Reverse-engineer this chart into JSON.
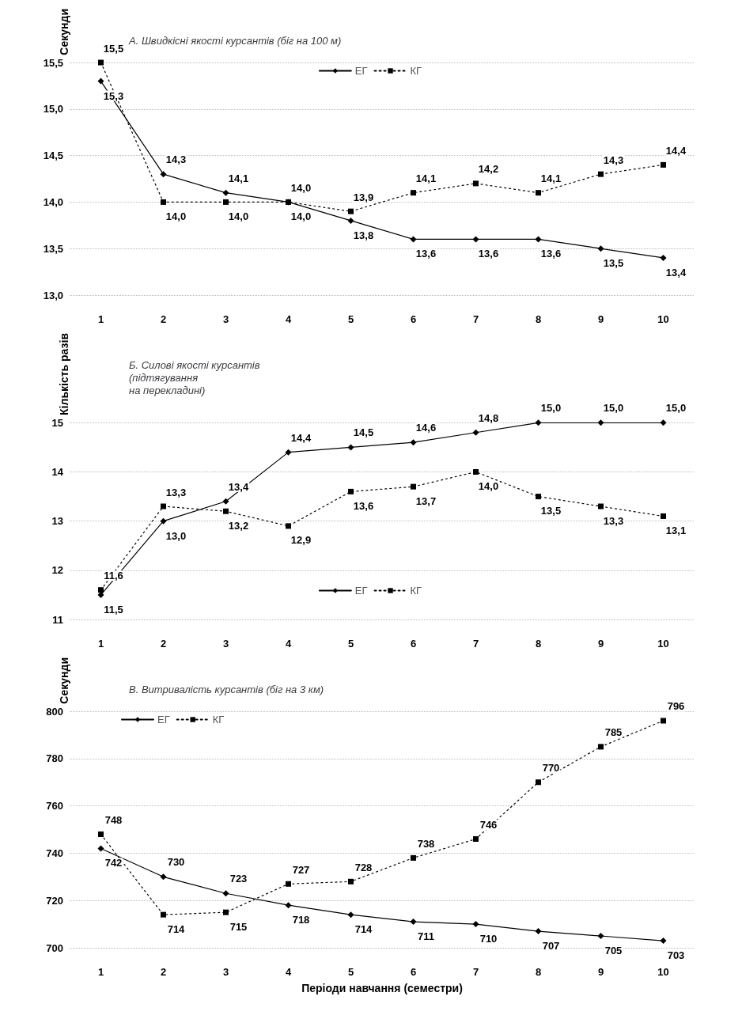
{
  "chart_data": [
    {
      "type": "line",
      "title": "А. Швидкісні якості курсантів (біг на 100 м)",
      "ylabel": "Секунди",
      "categories": [
        "1",
        "2",
        "3",
        "4",
        "5",
        "6",
        "7",
        "8",
        "9",
        "10"
      ],
      "series": [
        {
          "name": "ЕГ",
          "color": "#000000",
          "marker": "diamond",
          "line_style": "solid",
          "values": [
            15.3,
            14.3,
            14.1,
            14.0,
            13.8,
            13.6,
            13.6,
            13.6,
            13.5,
            13.4
          ],
          "value_labels": [
            "15,3",
            "14,3",
            "14,1",
            "14,0",
            "13,8",
            "13,6",
            "13,6",
            "13,6",
            "13,5",
            "13,4"
          ]
        },
        {
          "name": "КГ",
          "color": "#000000",
          "marker": "square",
          "line_style": "dotted",
          "values": [
            15.5,
            14.0,
            14.0,
            14.0,
            13.9,
            14.1,
            14.2,
            14.1,
            14.3,
            14.4
          ],
          "value_labels": [
            "15,5",
            "14,0",
            "14,0",
            "14,0",
            "13,9",
            "14,1",
            "14,2",
            "14,1",
            "14,3",
            "14,4"
          ]
        }
      ],
      "ylim": [
        13.0,
        15.5
      ],
      "yticks": [
        {
          "value": 13.0,
          "label": "13,0"
        },
        {
          "value": 13.5,
          "label": "13,5"
        },
        {
          "value": 14.0,
          "label": "14,0"
        },
        {
          "value": 14.5,
          "label": "14,5"
        },
        {
          "value": 15.0,
          "label": "15,0"
        },
        {
          "value": 15.5,
          "label": "15,5"
        }
      ],
      "grid": "y",
      "legend": "top"
    },
    {
      "type": "line",
      "title": "Б. Силові якості курсантів\n(підтягування\nна перекладині)",
      "ylabel": "Кількість разів",
      "categories": [
        "1",
        "2",
        "3",
        "4",
        "5",
        "6",
        "7",
        "8",
        "9",
        "10"
      ],
      "series": [
        {
          "name": "ЕГ",
          "color": "#000000",
          "marker": "diamond",
          "line_style": "solid",
          "values": [
            11.5,
            13.0,
            13.4,
            14.4,
            14.5,
            14.6,
            14.8,
            15.0,
            15.0,
            15.0
          ],
          "value_labels": [
            "11,5",
            "13,0",
            "13,4",
            "14,4",
            "14,5",
            "14,6",
            "14,8",
            "15,0",
            "15,0",
            "15,0"
          ]
        },
        {
          "name": "КГ",
          "color": "#000000",
          "marker": "square",
          "line_style": "dotted",
          "values": [
            11.6,
            13.3,
            13.2,
            12.9,
            13.6,
            13.7,
            14.0,
            13.5,
            13.3,
            13.1
          ],
          "value_labels": [
            "11,6",
            "13,3",
            "13,2",
            "12,9",
            "13,6",
            "13,7",
            "14,0",
            "13,5",
            "13,3",
            "13,1"
          ]
        }
      ],
      "ylim": [
        11,
        15
      ],
      "yticks": [
        11,
        12,
        13,
        14,
        15
      ],
      "grid": "y",
      "legend": "bottom"
    },
    {
      "type": "line",
      "title": "В. Витривалість курсантів (біг на 3 км)",
      "ylabel": "Секунди",
      "xlabel": "Періоди навчання (семестри)",
      "categories": [
        "1",
        "2",
        "3",
        "4",
        "5",
        "6",
        "7",
        "8",
        "9",
        "10"
      ],
      "series": [
        {
          "name": "ЕГ",
          "color": "#000000",
          "marker": "diamond",
          "line_style": "solid",
          "values": [
            742,
            730,
            723,
            718,
            714,
            711,
            710,
            707,
            705,
            703
          ]
        },
        {
          "name": "КГ",
          "color": "#000000",
          "marker": "square",
          "line_style": "dotted",
          "values": [
            748,
            714,
            715,
            727,
            728,
            738,
            746,
            770,
            785,
            796
          ]
        }
      ],
      "ylim": [
        700,
        800
      ],
      "yticks": [
        700,
        720,
        740,
        760,
        780,
        800
      ],
      "grid": "y",
      "legend": "top left",
      "data_labels": true
    }
  ]
}
